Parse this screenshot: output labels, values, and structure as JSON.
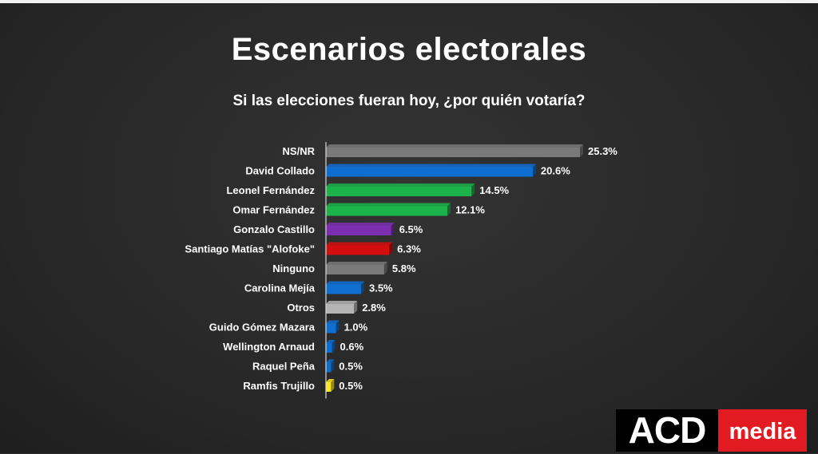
{
  "title": "Escenarios electorales",
  "subtitle": "Si las elecciones fueran hoy, ¿por quién votaría?",
  "logo": {
    "part1": "ACD",
    "part2": "media"
  },
  "chart_data": {
    "type": "bar",
    "orientation": "horizontal",
    "title": "Escenarios electorales",
    "subtitle": "Si las elecciones fueran hoy, ¿por quién votaría?",
    "categories": [
      "NS/NR",
      "David Collado",
      "Leonel Fernández",
      "Omar Fernández",
      "Gonzalo Castillo",
      "Santiago Matías \"Alofoke\"",
      "Ninguno",
      "Carolina Mejía",
      "Otros",
      "Guido Gómez Mazara",
      "Wellington Arnaud",
      "Raquel Peña",
      "Ramfis Trujillo"
    ],
    "values": [
      25.3,
      20.6,
      14.5,
      12.1,
      6.5,
      6.3,
      5.8,
      3.5,
      2.8,
      1.0,
      0.6,
      0.5,
      0.5
    ],
    "value_labels": [
      "25.3%",
      "20.6%",
      "14.5%",
      "12.1%",
      "6.5%",
      "6.3%",
      "5.8%",
      "3.5%",
      "2.8%",
      "1.0%",
      "0.6%",
      "0.5%",
      "0.5%"
    ],
    "colors": [
      "#7a7a7a",
      "#0f6fd1",
      "#1bb34a",
      "#1bb34a",
      "#7b2fb0",
      "#d30e0e",
      "#7a7a7a",
      "#0f6fd1",
      "#b5b5b5",
      "#0f6fd1",
      "#0f6fd1",
      "#0f6fd1",
      "#ffe81a"
    ],
    "xlim": [
      0,
      25.3
    ],
    "grid": false,
    "legend": "none"
  }
}
